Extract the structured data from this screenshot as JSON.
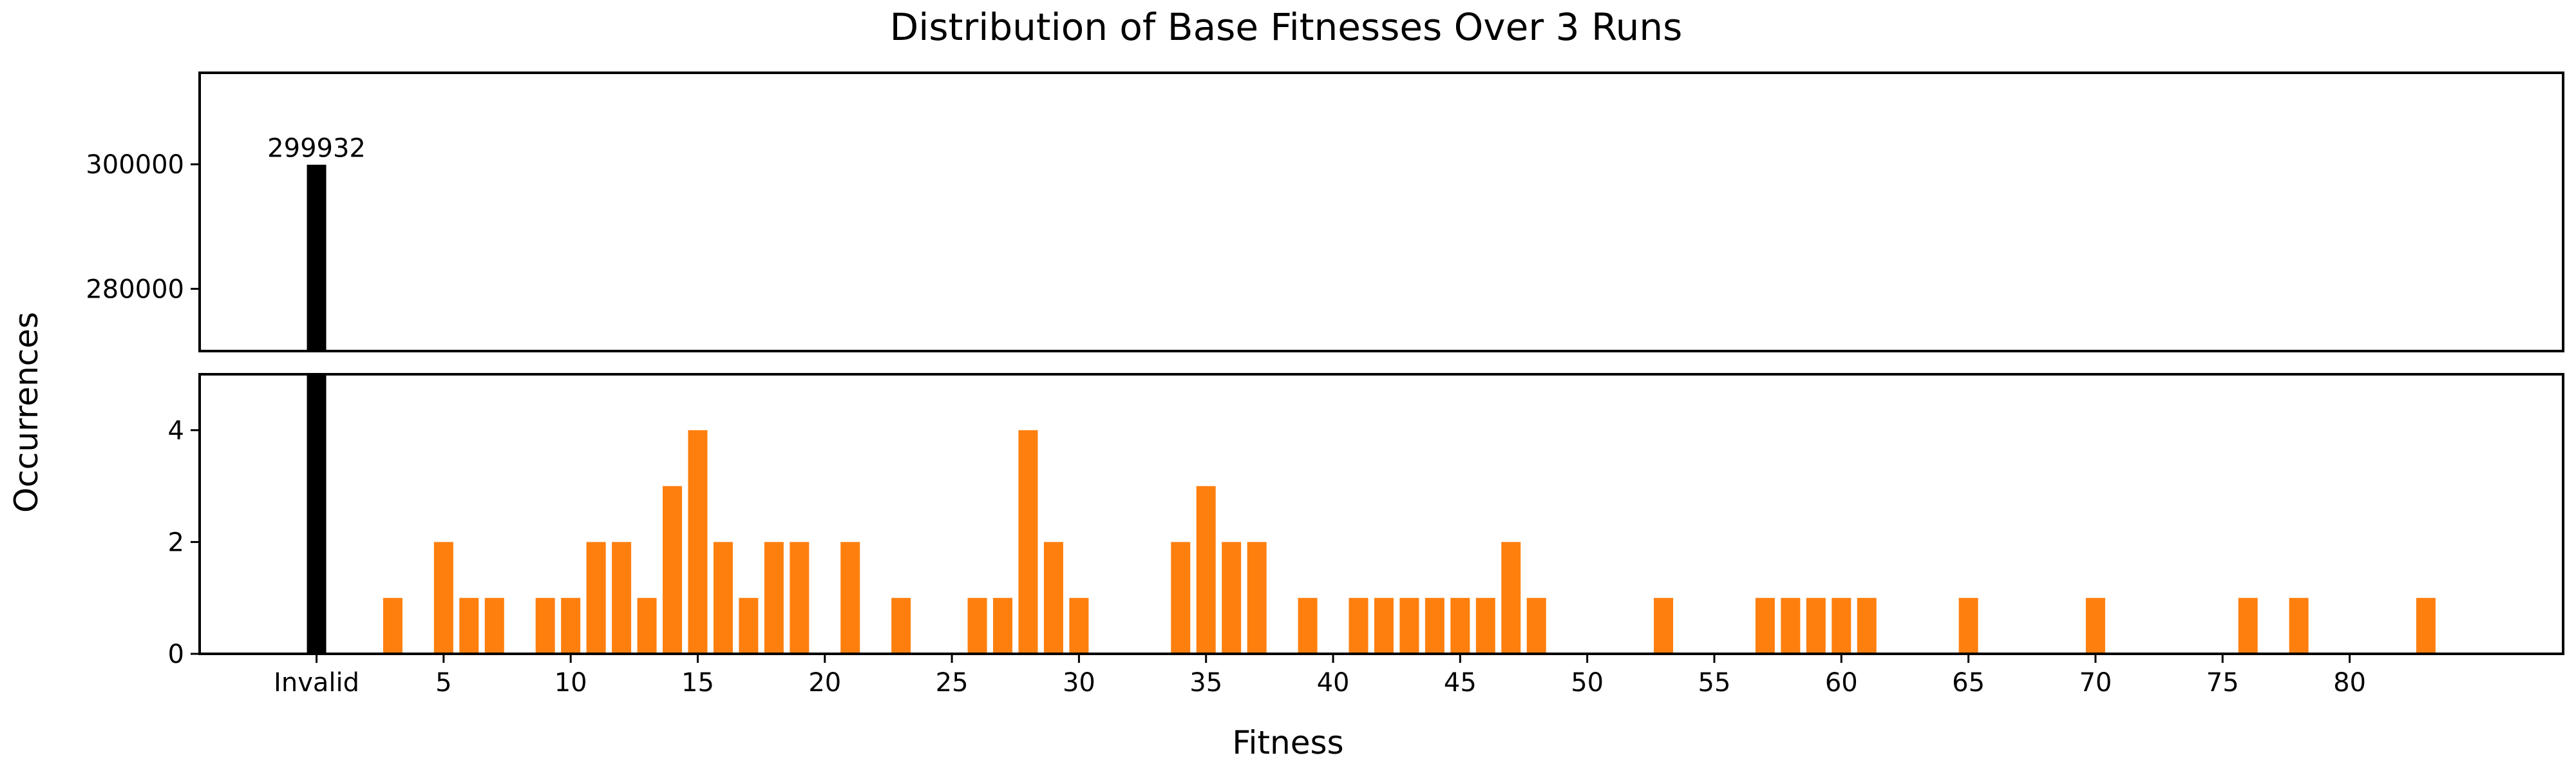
{
  "chart_data": {
    "type": "bar",
    "title": "Distribution of Base Fitnesses Over 3 Runs",
    "xlabel": "Fitness",
    "ylabel": "Occurrences",
    "layout": "broken y-axis, two stacked panels sharing the x-axis",
    "grid": false,
    "legend": "none",
    "x_ticks": [
      {
        "value": 0,
        "label": "Invalid"
      },
      {
        "value": 5,
        "label": "5"
      },
      {
        "value": 10,
        "label": "10"
      },
      {
        "value": 15,
        "label": "15"
      },
      {
        "value": 20,
        "label": "20"
      },
      {
        "value": 25,
        "label": "25"
      },
      {
        "value": 30,
        "label": "30"
      },
      {
        "value": 35,
        "label": "35"
      },
      {
        "value": 40,
        "label": "40"
      },
      {
        "value": 45,
        "label": "45"
      },
      {
        "value": 50,
        "label": "50"
      },
      {
        "value": 55,
        "label": "55"
      },
      {
        "value": 60,
        "label": "60"
      },
      {
        "value": 65,
        "label": "65"
      },
      {
        "value": 70,
        "label": "70"
      },
      {
        "value": 75,
        "label": "75"
      },
      {
        "value": 80,
        "label": "80"
      }
    ],
    "xlim": [
      -4.6,
      88.4
    ],
    "panels": [
      {
        "name": "upper",
        "ylim": [
          270000,
          314700
        ],
        "y_ticks": [
          280000,
          300000
        ]
      },
      {
        "name": "lower",
        "ylim": [
          0,
          5
        ],
        "y_ticks": [
          0,
          2,
          4
        ]
      }
    ],
    "colors": {
      "invalid": "#000000",
      "valid": "#ff7f0e"
    },
    "invalid": {
      "x": 0,
      "label": "Invalid",
      "value": 299932,
      "value_label": "299932"
    },
    "x": [
      3,
      5,
      6,
      7,
      9,
      10,
      11,
      12,
      13,
      14,
      15,
      16,
      17,
      18,
      19,
      21,
      23,
      26,
      27,
      28,
      29,
      30,
      34,
      35,
      36,
      37,
      39,
      41,
      42,
      43,
      44,
      45,
      46,
      47,
      48,
      53,
      57,
      58,
      59,
      60,
      61,
      65,
      70,
      76,
      78,
      83
    ],
    "values": [
      1,
      2,
      1,
      1,
      1,
      1,
      2,
      2,
      1,
      3,
      4,
      2,
      1,
      2,
      2,
      2,
      1,
      1,
      1,
      4,
      2,
      1,
      2,
      3,
      2,
      2,
      1,
      1,
      1,
      1,
      1,
      1,
      1,
      2,
      1,
      1,
      1,
      1,
      1,
      1,
      1,
      1,
      1,
      1,
      1,
      1
    ]
  }
}
